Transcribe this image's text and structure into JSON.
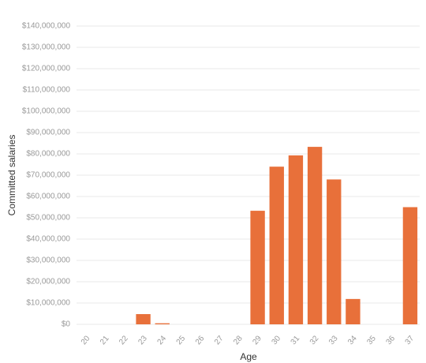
{
  "chart_data": {
    "type": "bar",
    "x_label": "Age",
    "y_label": "Committed salaries",
    "categories": [
      "20",
      "21",
      "22",
      "23",
      "24",
      "25",
      "26",
      "27",
      "28",
      "29",
      "30",
      "31",
      "32",
      "33",
      "34",
      "35",
      "36",
      "37"
    ],
    "values": [
      0,
      0,
      0,
      4800000,
      500000,
      0,
      0,
      0,
      0,
      53300000,
      74000000,
      79300000,
      83300000,
      68000000,
      11900000,
      0,
      0,
      55000000
    ],
    "color": "#e8703a",
    "ylim": [
      0,
      140000000
    ],
    "yticks": [
      {
        "value": 0,
        "label": "$0"
      },
      {
        "value": 10000000,
        "label": "$10,000,000"
      },
      {
        "value": 20000000,
        "label": "$20,000,000"
      },
      {
        "value": 30000000,
        "label": "$30,000,000"
      },
      {
        "value": 40000000,
        "label": "$40,000,000"
      },
      {
        "value": 50000000,
        "label": "$50,000,000"
      },
      {
        "value": 60000000,
        "label": "$60,000,000"
      },
      {
        "value": 70000000,
        "label": "$70,000,000"
      },
      {
        "value": 80000000,
        "label": "$80,000,000"
      },
      {
        "value": 90000000,
        "label": "$90,000,000"
      },
      {
        "value": 100000000,
        "label": "$100,000,000"
      },
      {
        "value": 110000000,
        "label": "$110,000,000"
      },
      {
        "value": 120000000,
        "label": "$120,000,000"
      },
      {
        "value": 130000000,
        "label": "$130,000,000"
      },
      {
        "value": 140000000,
        "label": "$140,000,000"
      }
    ],
    "grid": true
  }
}
